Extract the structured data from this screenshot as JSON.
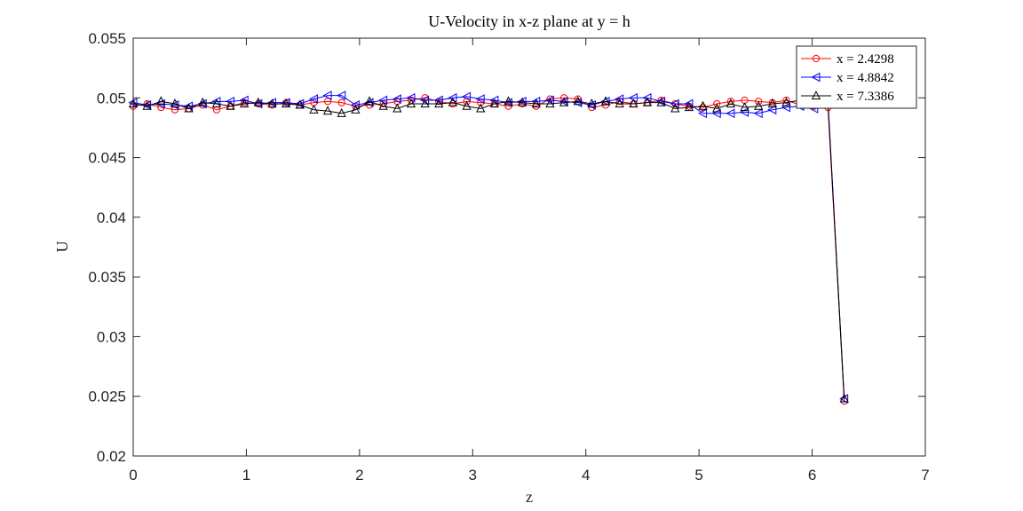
{
  "chart_data": {
    "type": "line",
    "title": "U-Velocity in x-z plane at y = h",
    "xlabel": "z",
    "ylabel": "U",
    "xlim": [
      0,
      7
    ],
    "ylim": [
      0.02,
      0.055
    ],
    "xticks": [
      "0",
      "1",
      "2",
      "3",
      "4",
      "5",
      "6",
      "7"
    ],
    "yticks": [
      "0.02",
      "0.025",
      "0.03",
      "0.035",
      "0.04",
      "0.045",
      "0.05",
      "0.055"
    ],
    "grid": false,
    "legend_position": "top-right",
    "x": [
      0.0,
      0.1228,
      0.2456,
      0.3684,
      0.4912,
      0.614,
      0.7368,
      0.8596,
      0.9824,
      1.1052,
      1.228,
      1.3508,
      1.4736,
      1.5964,
      1.7192,
      1.842,
      1.9648,
      2.0876,
      2.2104,
      2.3332,
      2.456,
      2.5788,
      2.7016,
      2.8244,
      2.9472,
      3.07,
      3.1928,
      3.3156,
      3.4384,
      3.5612,
      3.684,
      3.8068,
      3.9296,
      4.0524,
      4.1752,
      4.298,
      4.4208,
      4.5436,
      4.6664,
      4.7892,
      4.912,
      5.0348,
      5.1576,
      5.2804,
      5.4032,
      5.526,
      5.6488,
      5.7716,
      5.8944,
      6.0172,
      6.14,
      6.2832
    ],
    "series": [
      {
        "name": "x = 2.4298",
        "color": "#ff0000",
        "marker": "circle",
        "values": [
          0.0493,
          0.0495,
          0.0492,
          0.049,
          0.0491,
          0.0494,
          0.049,
          0.0493,
          0.0496,
          0.0495,
          0.0494,
          0.0496,
          0.0494,
          0.0496,
          0.0497,
          0.0496,
          0.0493,
          0.0494,
          0.0495,
          0.0497,
          0.0498,
          0.05,
          0.0497,
          0.0495,
          0.0497,
          0.0496,
          0.0495,
          0.0493,
          0.0495,
          0.0493,
          0.0499,
          0.05,
          0.0499,
          0.0492,
          0.0494,
          0.0497,
          0.0495,
          0.0496,
          0.0498,
          0.0495,
          0.0493,
          0.0492,
          0.0495,
          0.0497,
          0.0498,
          0.0497,
          0.0496,
          0.0498,
          0.0494,
          0.0493,
          0.0492,
          0.0246
        ]
      },
      {
        "name": "x = 4.8842",
        "color": "#0000ff",
        "marker": "triangle-left",
        "values": [
          0.0496,
          0.0494,
          0.0495,
          0.0494,
          0.0493,
          0.0495,
          0.0497,
          0.0497,
          0.0498,
          0.0495,
          0.0496,
          0.0496,
          0.0495,
          0.0499,
          0.0502,
          0.0502,
          0.0494,
          0.0496,
          0.0498,
          0.0499,
          0.05,
          0.0498,
          0.0498,
          0.05,
          0.0501,
          0.0499,
          0.0498,
          0.0496,
          0.0497,
          0.0497,
          0.0498,
          0.0497,
          0.0496,
          0.0494,
          0.0497,
          0.0499,
          0.05,
          0.05,
          0.0497,
          0.0495,
          0.0495,
          0.0487,
          0.0487,
          0.0487,
          0.0488,
          0.0487,
          0.049,
          0.0492,
          0.0493,
          0.0491,
          0.0497,
          0.0248
        ]
      },
      {
        "name": "x = 7.3386",
        "color": "#000000",
        "marker": "triangle-up",
        "values": [
          0.0495,
          0.0493,
          0.0497,
          0.0495,
          0.0491,
          0.0496,
          0.0495,
          0.0493,
          0.0495,
          0.0496,
          0.0495,
          0.0495,
          0.0494,
          0.049,
          0.0489,
          0.0487,
          0.049,
          0.0497,
          0.0493,
          0.0491,
          0.0495,
          0.0495,
          0.0495,
          0.0496,
          0.0493,
          0.0491,
          0.0495,
          0.0497,
          0.0496,
          0.0495,
          0.0495,
          0.0496,
          0.0497,
          0.0495,
          0.0497,
          0.0495,
          0.0495,
          0.0496,
          0.0496,
          0.0491,
          0.0492,
          0.0493,
          0.0491,
          0.0495,
          0.0492,
          0.0493,
          0.0495,
          0.0496,
          0.0498,
          0.0496,
          0.0495,
          0.0248
        ]
      }
    ]
  }
}
